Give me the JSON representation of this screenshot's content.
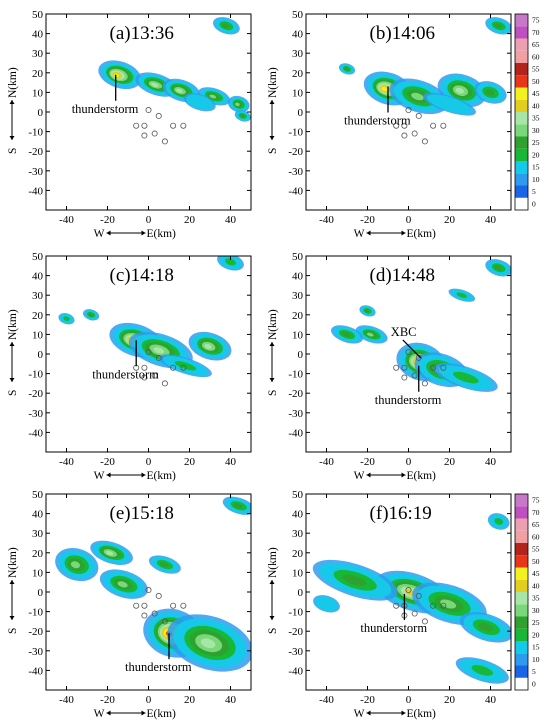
{
  "chart_data": {
    "type": "heatmap",
    "description_units": "radar reflectivity (dBZ) maps",
    "x_ticks": [
      "-40",
      "-20",
      "0",
      "20",
      "40"
    ],
    "y_ticks": [
      "50",
      "40",
      "30",
      "20",
      "10",
      "0",
      "-10",
      "-20",
      "-30",
      "-40"
    ],
    "xlim": [
      -50,
      50
    ],
    "ylim": [
      -50,
      50
    ],
    "colorbar": {
      "levels": [
        "0",
        "5",
        "10",
        "15",
        "20",
        "25",
        "30",
        "35",
        "40",
        "45",
        "50",
        "55",
        "60",
        "65",
        "70",
        "75"
      ],
      "colors": [
        "#ffffff",
        "#1a66e6",
        "#2d9cf0",
        "#17c9e8",
        "#17b835",
        "#2ea12e",
        "#7ad77a",
        "#a8e6a8",
        "#e3ce1e",
        "#f2f21e",
        "#e8361a",
        "#b3241a",
        "#f0a0a0",
        "#ec9fb0",
        "#c04fbf",
        "#c878c8"
      ]
    },
    "axis_words": {
      "x_west": "W",
      "x_east": "E(km)",
      "y_north": "N(km)",
      "y_south": "S"
    },
    "panels": [
      {
        "title": "(a)13:36",
        "annotations": [
          {
            "text": "thunderstorm",
            "x": -16,
            "y": 19
          }
        ],
        "circles": [
          [
            0,
            1
          ],
          [
            5,
            -2
          ],
          [
            -2,
            -7
          ],
          [
            -6,
            -7
          ],
          [
            12,
            -7
          ],
          [
            17,
            -7
          ],
          [
            -2,
            -12
          ],
          [
            3,
            -11
          ],
          [
            8,
            -15
          ]
        ],
        "echoes": [
          {
            "x": -14,
            "y": 19,
            "rx": 8,
            "ry": 5,
            "peak": 45
          },
          {
            "x": 4,
            "y": 14,
            "rx": 8,
            "ry": 4,
            "peak": 35
          },
          {
            "x": 16,
            "y": 11,
            "rx": 7,
            "ry": 4,
            "peak": 35
          },
          {
            "x": 32,
            "y": 8,
            "rx": 6,
            "ry": 3,
            "peak": 30
          },
          {
            "x": 44,
            "y": 4,
            "rx": 4,
            "ry": 3,
            "peak": 30
          },
          {
            "x": 25,
            "y": 5,
            "rx": 6,
            "ry": 3,
            "peak": 15
          },
          {
            "x": 38,
            "y": 44,
            "rx": 5,
            "ry": 3,
            "peak": 25
          },
          {
            "x": 46,
            "y": -2,
            "rx": 3,
            "ry": 2,
            "peak": 25
          }
        ]
      },
      {
        "title": "(b)14:06",
        "annotations": [
          {
            "text": "thunderstorm",
            "x": -10,
            "y": 13
          }
        ],
        "circles": [
          [
            0,
            1
          ],
          [
            5,
            -2
          ],
          [
            -2,
            -7
          ],
          [
            -6,
            -7
          ],
          [
            12,
            -7
          ],
          [
            17,
            -7
          ],
          [
            -2,
            -12
          ],
          [
            3,
            -11
          ],
          [
            8,
            -15
          ]
        ],
        "echoes": [
          {
            "x": -10,
            "y": 12,
            "rx": 9,
            "ry": 6,
            "peak": 45
          },
          {
            "x": 5,
            "y": 8,
            "rx": 11,
            "ry": 6,
            "peak": 30
          },
          {
            "x": 26,
            "y": 11,
            "rx": 9,
            "ry": 6,
            "peak": 35
          },
          {
            "x": 40,
            "y": 10,
            "rx": 6,
            "ry": 4,
            "peak": 25
          },
          {
            "x": -30,
            "y": 22,
            "rx": 3,
            "ry": 2,
            "peak": 25
          },
          {
            "x": 44,
            "y": 44,
            "rx": 5,
            "ry": 3,
            "peak": 25
          },
          {
            "x": 20,
            "y": 4,
            "rx": 10,
            "ry": 3,
            "peak": 15
          }
        ]
      },
      {
        "title": "(c)14:18",
        "annotations": [
          {
            "text": "thunderstorm",
            "x": -6,
            "y": 7
          }
        ],
        "circles": [
          [
            0,
            1
          ],
          [
            5,
            -2
          ],
          [
            -2,
            -7
          ],
          [
            -6,
            -7
          ],
          [
            12,
            -7
          ],
          [
            17,
            -7
          ],
          [
            -2,
            -12
          ],
          [
            3,
            -11
          ],
          [
            8,
            -15
          ]
        ],
        "echoes": [
          {
            "x": -6,
            "y": 7,
            "rx": 10,
            "ry": 6,
            "peak": 45
          },
          {
            "x": 6,
            "y": 2,
            "rx": 12,
            "ry": 6,
            "peak": 35
          },
          {
            "x": 30,
            "y": 4,
            "rx": 8,
            "ry": 5,
            "peak": 35
          },
          {
            "x": 18,
            "y": -6,
            "rx": 10,
            "ry": 3,
            "peak": 20
          },
          {
            "x": -28,
            "y": 20,
            "rx": 3,
            "ry": 2,
            "peak": 25
          },
          {
            "x": -40,
            "y": 18,
            "rx": 3,
            "ry": 2,
            "peak": 20
          },
          {
            "x": 40,
            "y": 47,
            "rx": 5,
            "ry": 3,
            "peak": 20
          }
        ]
      },
      {
        "title": "(d)14:48",
        "annotations": [
          {
            "text": "XBC",
            "x": 6,
            "y": -2
          },
          {
            "text": "thunderstorm",
            "x": 5,
            "y": -6
          }
        ],
        "circles": [
          [
            0,
            1
          ],
          [
            5,
            -2
          ],
          [
            -2,
            -7
          ],
          [
            -6,
            -7
          ],
          [
            12,
            -7
          ],
          [
            17,
            -7
          ],
          [
            -2,
            -12
          ],
          [
            3,
            -11
          ],
          [
            8,
            -15
          ]
        ],
        "echoes": [
          {
            "x": 6,
            "y": -4,
            "rx": 9,
            "ry": 7,
            "peak": 45
          },
          {
            "x": 16,
            "y": -8,
            "rx": 10,
            "ry": 6,
            "peak": 30
          },
          {
            "x": 28,
            "y": -12,
            "rx": 12,
            "ry": 4,
            "peak": 20
          },
          {
            "x": -18,
            "y": 10,
            "rx": 6,
            "ry": 3,
            "peak": 30
          },
          {
            "x": -30,
            "y": 10,
            "rx": 6,
            "ry": 3,
            "peak": 25
          },
          {
            "x": -20,
            "y": 22,
            "rx": 3,
            "ry": 2,
            "peak": 25
          },
          {
            "x": 26,
            "y": 30,
            "rx": 5,
            "ry": 2,
            "peak": 20
          },
          {
            "x": 44,
            "y": 44,
            "rx": 5,
            "ry": 3,
            "peak": 25
          }
        ]
      },
      {
        "title": "(e)15:18",
        "annotations": [
          {
            "text": "thunderstorm",
            "x": 10,
            "y": -21
          }
        ],
        "circles": [
          [
            0,
            1
          ],
          [
            5,
            -2
          ],
          [
            -2,
            -7
          ],
          [
            -6,
            -7
          ],
          [
            12,
            -7
          ],
          [
            17,
            -7
          ],
          [
            -2,
            -12
          ],
          [
            3,
            -11
          ],
          [
            8,
            -15
          ]
        ],
        "echoes": [
          {
            "x": 12,
            "y": -21,
            "rx": 11,
            "ry": 9,
            "peak": 50
          },
          {
            "x": 30,
            "y": -26,
            "rx": 16,
            "ry": 10,
            "peak": 35
          },
          {
            "x": -18,
            "y": 20,
            "rx": 8,
            "ry": 4,
            "peak": 35
          },
          {
            "x": -12,
            "y": 4,
            "rx": 9,
            "ry": 5,
            "peak": 30
          },
          {
            "x": -35,
            "y": 14,
            "rx": 8,
            "ry": 6,
            "peak": 30
          },
          {
            "x": 8,
            "y": 14,
            "rx": 6,
            "ry": 3,
            "peak": 25
          },
          {
            "x": 44,
            "y": 44,
            "rx": 6,
            "ry": 3,
            "peak": 25
          }
        ]
      },
      {
        "title": "(f)16:19",
        "annotations": [
          {
            "text": "thunderstorm",
            "x": -2,
            "y": -1
          }
        ],
        "circles": [
          [
            0,
            1
          ],
          [
            5,
            -2
          ],
          [
            -2,
            -7
          ],
          [
            -6,
            -7
          ],
          [
            12,
            -7
          ],
          [
            17,
            -7
          ],
          [
            -2,
            -12
          ],
          [
            3,
            -11
          ],
          [
            8,
            -15
          ]
        ],
        "echoes": [
          {
            "x": 2,
            "y": 0,
            "rx": 14,
            "ry": 7,
            "peak": 40
          },
          {
            "x": 20,
            "y": -6,
            "rx": 14,
            "ry": 7,
            "peak": 30
          },
          {
            "x": -26,
            "y": 6,
            "rx": 16,
            "ry": 6,
            "peak": 25
          },
          {
            "x": 38,
            "y": -18,
            "rx": 10,
            "ry": 5,
            "peak": 25
          },
          {
            "x": 36,
            "y": -40,
            "rx": 10,
            "ry": 4,
            "peak": 20
          },
          {
            "x": 44,
            "y": 36,
            "rx": 4,
            "ry": 3,
            "peak": 20
          },
          {
            "x": -40,
            "y": -6,
            "rx": 5,
            "ry": 3,
            "peak": 15
          }
        ]
      }
    ]
  }
}
